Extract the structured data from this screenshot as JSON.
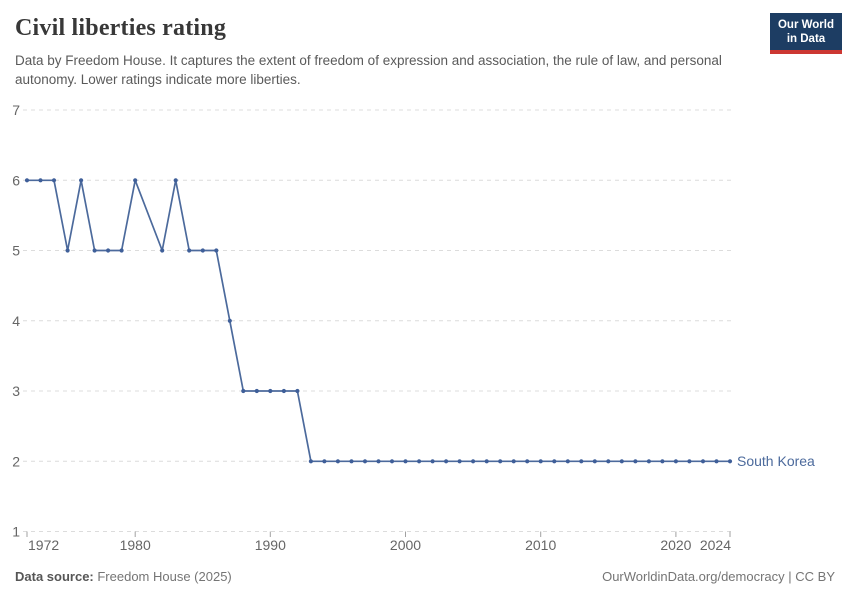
{
  "header": {
    "title": "Civil liberties rating",
    "subtitle": "Data by Freedom House. It captures the extent of freedom of expression and association, the rule of law, and personal autonomy. Lower ratings indicate more liberties.",
    "logo": {
      "line1": "Our World",
      "line2": "in Data"
    }
  },
  "chart_data": {
    "type": "line",
    "title": "Civil liberties rating",
    "xlabel": "",
    "ylabel": "",
    "xlim": [
      1972,
      2024
    ],
    "ylim": [
      1,
      7
    ],
    "x_ticks": [
      1972,
      1980,
      1990,
      2000,
      2010,
      2020,
      2024
    ],
    "y_ticks": [
      1,
      2,
      3,
      4,
      5,
      6,
      7
    ],
    "grid": "horizontal-dashed",
    "legend_position": "end-of-line",
    "series": [
      {
        "name": "South Korea",
        "color": "#4c6a9c",
        "marker_color": "#3f5f99",
        "points": [
          [
            1972,
            6
          ],
          [
            1973,
            6
          ],
          [
            1974,
            6
          ],
          [
            1975,
            5
          ],
          [
            1976,
            6
          ],
          [
            1977,
            5
          ],
          [
            1978,
            5
          ],
          [
            1979,
            5
          ],
          [
            1980,
            6
          ],
          [
            1982,
            5
          ],
          [
            1983,
            6
          ],
          [
            1984,
            5
          ],
          [
            1985,
            5
          ],
          [
            1986,
            5
          ],
          [
            1987,
            4
          ],
          [
            1988,
            3
          ],
          [
            1989,
            3
          ],
          [
            1990,
            3
          ],
          [
            1991,
            3
          ],
          [
            1992,
            3
          ],
          [
            1993,
            2
          ],
          [
            1994,
            2
          ],
          [
            1995,
            2
          ],
          [
            1996,
            2
          ],
          [
            1997,
            2
          ],
          [
            1998,
            2
          ],
          [
            1999,
            2
          ],
          [
            2000,
            2
          ],
          [
            2001,
            2
          ],
          [
            2002,
            2
          ],
          [
            2003,
            2
          ],
          [
            2004,
            2
          ],
          [
            2005,
            2
          ],
          [
            2006,
            2
          ],
          [
            2007,
            2
          ],
          [
            2008,
            2
          ],
          [
            2009,
            2
          ],
          [
            2010,
            2
          ],
          [
            2011,
            2
          ],
          [
            2012,
            2
          ],
          [
            2013,
            2
          ],
          [
            2014,
            2
          ],
          [
            2015,
            2
          ],
          [
            2016,
            2
          ],
          [
            2017,
            2
          ],
          [
            2018,
            2
          ],
          [
            2019,
            2
          ],
          [
            2020,
            2
          ],
          [
            2021,
            2
          ],
          [
            2022,
            2
          ],
          [
            2023,
            2
          ],
          [
            2024,
            2
          ]
        ]
      }
    ]
  },
  "footer": {
    "source_label": "Data source:",
    "source_value": " Freedom House (2025)",
    "credit_site": "OurWorldinData.org/democracy",
    "credit_separator": " | ",
    "credit_license": "CC BY"
  },
  "colors": {
    "line": "#4c6a9c",
    "marker": "#3f5f99",
    "series_label": "#4c6a9c",
    "grid": "#dcdcdc",
    "axis_text": "#666666",
    "tick": "#a1a1a1",
    "logo_bg": "#1d3d63",
    "logo_stripe": "#cc3732"
  }
}
